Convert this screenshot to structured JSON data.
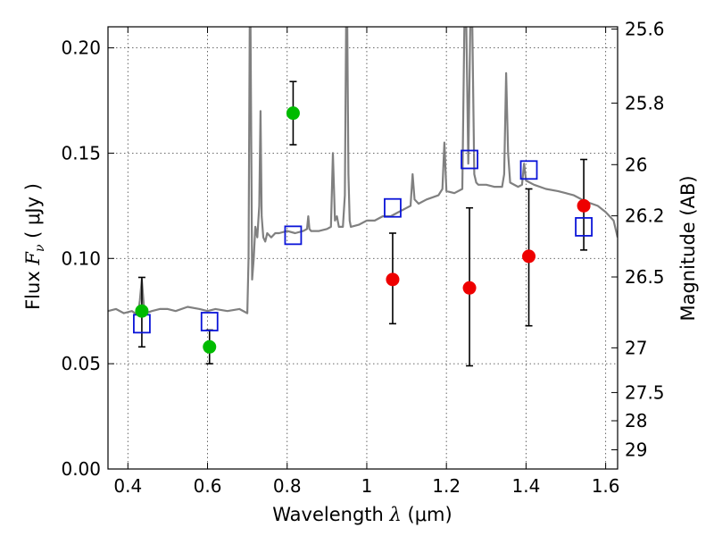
{
  "chart_data": {
    "type": "scatter",
    "title": "",
    "xlabel": "Wavelength  λ (μm)",
    "ylabel": "Flux  F_ν  ( μJy )",
    "ylabel_parts": {
      "prefix": "Flux  ",
      "symbol": "F",
      "subscript": "ν",
      "units": "  ( μJy )"
    },
    "xlabel_parts": {
      "prefix": "Wavelength  ",
      "symbol": "λ",
      "units": " (μm)"
    },
    "y2label": "Magnitude (AB)",
    "xlim": [
      0.35,
      1.63
    ],
    "ylim": [
      0.0,
      0.21
    ],
    "grid": true,
    "xticks": [
      {
        "value": 0.4,
        "label": "0.4"
      },
      {
        "value": 0.6,
        "label": "0.6"
      },
      {
        "value": 0.8,
        "label": "0.8"
      },
      {
        "value": 1.0,
        "label": "1"
      },
      {
        "value": 1.2,
        "label": "1.2"
      },
      {
        "value": 1.4,
        "label": "1.4"
      },
      {
        "value": 1.6,
        "label": "1.6"
      }
    ],
    "yticks": [
      {
        "value": 0.0,
        "label": "0.00"
      },
      {
        "value": 0.05,
        "label": "0.05"
      },
      {
        "value": 0.1,
        "label": "0.10"
      },
      {
        "value": 0.15,
        "label": "0.15"
      },
      {
        "value": 0.2,
        "label": "0.20"
      }
    ],
    "mag_ticks": [
      "25.6",
      "25.8",
      "26",
      "26.2",
      "26.5",
      "27",
      "27.5",
      "28",
      "29"
    ],
    "colors": {
      "spectrum": "#808080",
      "model": "#0a14d8",
      "green_points": "#00bb00",
      "red_points": "#ee0000",
      "errorbar": "#000000"
    },
    "series": [
      {
        "kind": "spectrum",
        "x": [
          0.35,
          0.37,
          0.39,
          0.41,
          0.425,
          0.43,
          0.435,
          0.44,
          0.445,
          0.46,
          0.48,
          0.5,
          0.52,
          0.55,
          0.58,
          0.6,
          0.62,
          0.65,
          0.68,
          0.7,
          0.703,
          0.706,
          0.708,
          0.712,
          0.716,
          0.72,
          0.725,
          0.73,
          0.733,
          0.736,
          0.74,
          0.745,
          0.75,
          0.76,
          0.77,
          0.78,
          0.8,
          0.82,
          0.84,
          0.85,
          0.853,
          0.856,
          0.86,
          0.88,
          0.9,
          0.91,
          0.915,
          0.92,
          0.925,
          0.93,
          0.94,
          0.945,
          0.948,
          0.951,
          0.954,
          0.957,
          0.96,
          0.98,
          1.0,
          1.02,
          1.04,
          1.06,
          1.08,
          1.1,
          1.11,
          1.115,
          1.12,
          1.13,
          1.15,
          1.18,
          1.19,
          1.195,
          1.2,
          1.22,
          1.24,
          1.245,
          1.25,
          1.255,
          1.26,
          1.265,
          1.27,
          1.275,
          1.28,
          1.3,
          1.32,
          1.34,
          1.345,
          1.35,
          1.355,
          1.36,
          1.38,
          1.39,
          1.395,
          1.4,
          1.42,
          1.45,
          1.48,
          1.5,
          1.52,
          1.55,
          1.58,
          1.6,
          1.62,
          1.63
        ],
        "y": [
          0.075,
          0.076,
          0.074,
          0.075,
          0.073,
          0.08,
          0.09,
          0.078,
          0.074,
          0.075,
          0.076,
          0.076,
          0.075,
          0.077,
          0.076,
          0.075,
          0.076,
          0.075,
          0.076,
          0.074,
          0.1,
          0.21,
          0.21,
          0.09,
          0.1,
          0.115,
          0.11,
          0.125,
          0.17,
          0.12,
          0.11,
          0.108,
          0.112,
          0.11,
          0.112,
          0.112,
          0.113,
          0.112,
          0.113,
          0.114,
          0.12,
          0.114,
          0.113,
          0.113,
          0.114,
          0.115,
          0.15,
          0.118,
          0.12,
          0.115,
          0.115,
          0.13,
          0.21,
          0.21,
          0.14,
          0.118,
          0.115,
          0.116,
          0.118,
          0.118,
          0.12,
          0.12,
          0.122,
          0.124,
          0.125,
          0.14,
          0.128,
          0.126,
          0.128,
          0.13,
          0.133,
          0.155,
          0.132,
          0.131,
          0.133,
          0.21,
          0.21,
          0.145,
          0.21,
          0.21,
          0.14,
          0.136,
          0.135,
          0.135,
          0.134,
          0.134,
          0.14,
          0.188,
          0.15,
          0.136,
          0.134,
          0.135,
          0.145,
          0.137,
          0.135,
          0.133,
          0.132,
          0.131,
          0.13,
          0.127,
          0.125,
          0.122,
          0.118,
          0.11
        ]
      },
      {
        "kind": "model-boxes",
        "x": [
          0.435,
          0.605,
          0.815,
          1.065,
          1.258,
          1.407,
          1.545
        ],
        "y": [
          0.069,
          0.07,
          0.111,
          0.124,
          0.147,
          0.142,
          0.115
        ]
      },
      {
        "kind": "green-points",
        "x": [
          0.435,
          0.605,
          0.815
        ],
        "y": [
          0.075,
          0.058,
          0.169
        ],
        "yerr_low": [
          0.058,
          0.05,
          0.154
        ],
        "yerr_high": [
          0.091,
          0.066,
          0.184
        ]
      },
      {
        "kind": "red-points",
        "x": [
          1.065,
          1.258,
          1.407,
          1.545
        ],
        "y": [
          0.09,
          0.086,
          0.101,
          0.125
        ],
        "yerr_low": [
          0.069,
          0.049,
          0.068,
          0.104
        ],
        "yerr_high": [
          0.112,
          0.124,
          0.133,
          0.147
        ]
      }
    ]
  }
}
